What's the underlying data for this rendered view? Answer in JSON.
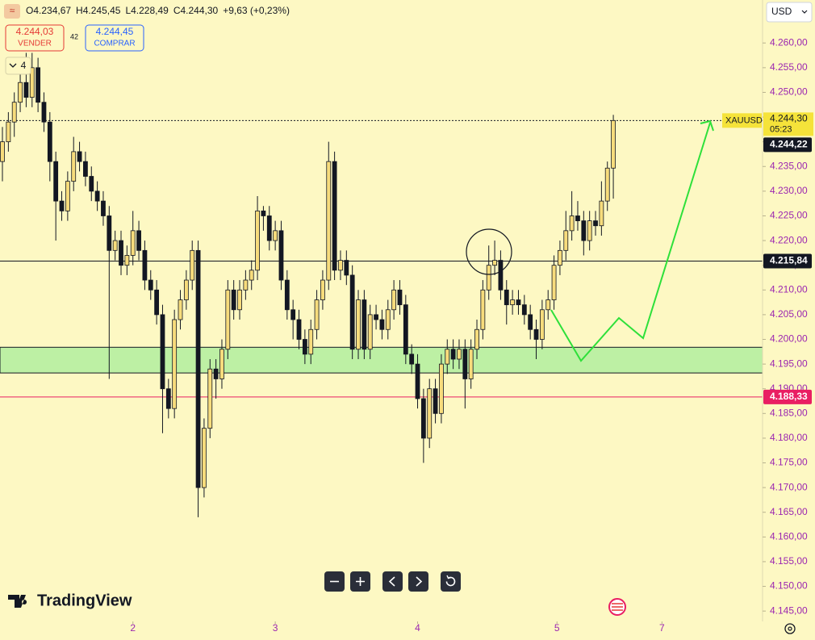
{
  "chart_data": {
    "type": "candlestick",
    "symbol": "XAUUSD",
    "countdown": "05:23",
    "header": {
      "fields": [
        "O4.234,67",
        "H4.245,45",
        "L4.228,49",
        "C4.244,30"
      ],
      "change": "+9,63 (+0,23%)"
    },
    "sell": {
      "price": "4.244,03",
      "label": "VENDER"
    },
    "spread": "42",
    "buy": {
      "price": "4.244,45",
      "label": "COMPRAR"
    },
    "indicator_count": "4",
    "currency": "USD",
    "brand": "TradingView",
    "xlim": [
      -0.41,
      128.16
    ],
    "ylim": [
      4142.9,
      4268.7
    ],
    "xticks": [
      {
        "value": 22,
        "label": "2"
      },
      {
        "value": 46,
        "label": "3"
      },
      {
        "value": 70,
        "label": "4"
      },
      {
        "value": 93.5,
        "label": "5"
      },
      {
        "value": 111.2,
        "label": "7"
      }
    ],
    "yticks": [
      {
        "value": 4145,
        "label": "4.145,00"
      },
      {
        "value": 4150,
        "label": "4.150,00"
      },
      {
        "value": 4155,
        "label": "4.155,00"
      },
      {
        "value": 4160,
        "label": "4.160,00"
      },
      {
        "value": 4165,
        "label": "4.165,00"
      },
      {
        "value": 4170,
        "label": "4.170,00"
      },
      {
        "value": 4175,
        "label": "4.175,00"
      },
      {
        "value": 4180,
        "label": "4.180,00"
      },
      {
        "value": 4185,
        "label": "4.185,00"
      },
      {
        "value": 4190,
        "label": "4.190,00"
      },
      {
        "value": 4195,
        "label": "4.195,00"
      },
      {
        "value": 4200,
        "label": "4.200,00"
      },
      {
        "value": 4205,
        "label": "4.205,00"
      },
      {
        "value": 4210,
        "label": "4.210,00"
      },
      {
        "value": 4215,
        "label": "4.215,00"
      },
      {
        "value": 4220,
        "label": "4.220,00"
      },
      {
        "value": 4225,
        "label": "4.225,00"
      },
      {
        "value": 4230,
        "label": "4.230,00"
      },
      {
        "value": 4235,
        "label": "4.235,00"
      },
      {
        "value": 4240,
        "label": "4.240,00"
      },
      {
        "value": 4245,
        "label": "4.245,00"
      },
      {
        "value": 4250,
        "label": "4.250,00"
      },
      {
        "value": 4255,
        "label": "4.255,00"
      },
      {
        "value": 4260,
        "label": "4.260,00"
      }
    ],
    "up_color": "#f7dc7c",
    "down_color": "#131722",
    "zones": [
      {
        "from": 4193.2,
        "to": 4198.4,
        "color": "#bdf0a4"
      }
    ],
    "price_labels": [
      {
        "value": 4244.3,
        "label": "4.244,30",
        "color": "#f5e33a",
        "text_color": "#131722",
        "line": "dotted"
      },
      {
        "value": 4244.22,
        "label": "4.244,22",
        "color": "#131722",
        "text_color": "#ffffff",
        "line": "none"
      },
      {
        "value": 4215.84,
        "label": "4.215,84",
        "color": "#131722",
        "text_color": "#ffffff",
        "line": "solid"
      },
      {
        "value": 4188.33,
        "label": "4.188,33",
        "color": "#e91e63",
        "text_color": "#ffffff",
        "line": "solid"
      }
    ],
    "candles": [
      [
        4236,
        4243,
        4232,
        4240
      ],
      [
        4240,
        4246,
        4238,
        4244
      ],
      [
        4244,
        4250,
        4241,
        4248
      ],
      [
        4248,
        4256,
        4246,
        4252
      ],
      [
        4252,
        4258,
        4247,
        4249
      ],
      [
        4249,
        4258,
        4247,
        4255
      ],
      [
        4255,
        4257,
        4246,
        4248
      ],
      [
        4248,
        4250,
        4242,
        4244
      ],
      [
        4244,
        4246,
        4232,
        4236
      ],
      [
        4236,
        4238,
        4220,
        4228
      ],
      [
        4228,
        4230,
        4224,
        4226
      ],
      [
        4226,
        4234,
        4224,
        4232
      ],
      [
        4232,
        4241,
        4230,
        4238
      ],
      [
        4238,
        4240,
        4234,
        4236
      ],
      [
        4236,
        4238,
        4231,
        4233
      ],
      [
        4233,
        4235,
        4228,
        4230
      ],
      [
        4230,
        4232,
        4226,
        4228
      ],
      [
        4228,
        4230,
        4223,
        4225
      ],
      [
        4225,
        4227,
        4192,
        4218
      ],
      [
        4218,
        4222,
        4216,
        4220
      ],
      [
        4220,
        4222,
        4213,
        4215
      ],
      [
        4215,
        4219,
        4213,
        4217
      ],
      [
        4217,
        4226,
        4215,
        4222
      ],
      [
        4222,
        4224,
        4216,
        4218
      ],
      [
        4218,
        4220,
        4210,
        4212
      ],
      [
        4212,
        4214,
        4208,
        4210
      ],
      [
        4210,
        4212,
        4203,
        4205
      ],
      [
        4205,
        4207,
        4181,
        4190
      ],
      [
        4190,
        4192,
        4184,
        4186
      ],
      [
        4186,
        4206,
        4184,
        4204
      ],
      [
        4204,
        4210,
        4202,
        4208
      ],
      [
        4208,
        4214,
        4206,
        4212
      ],
      [
        4212,
        4220,
        4210,
        4218
      ],
      [
        4218,
        4220,
        4164,
        4170
      ],
      [
        4170,
        4184,
        4168,
        4182
      ],
      [
        4182,
        4196,
        4180,
        4194
      ],
      [
        4194,
        4196,
        4188,
        4192
      ],
      [
        4192,
        4200,
        4190,
        4198
      ],
      [
        4198,
        4212,
        4196,
        4210
      ],
      [
        4210,
        4212,
        4204,
        4206
      ],
      [
        4206,
        4212,
        4204,
        4210
      ],
      [
        4210,
        4214,
        4208,
        4212
      ],
      [
        4212,
        4216,
        4210,
        4214
      ],
      [
        4214,
        4229,
        4212,
        4226
      ],
      [
        4226,
        4227,
        4222,
        4225
      ],
      [
        4225,
        4227,
        4218,
        4220
      ],
      [
        4220,
        4224,
        4218,
        4222
      ],
      [
        4222,
        4224,
        4210,
        4212
      ],
      [
        4212,
        4214,
        4204,
        4206
      ],
      [
        4206,
        4208,
        4200,
        4204
      ],
      [
        4204,
        4206,
        4198,
        4200
      ],
      [
        4200,
        4202,
        4195,
        4197
      ],
      [
        4197,
        4204,
        4195,
        4202
      ],
      [
        4202,
        4210,
        4200,
        4208
      ],
      [
        4208,
        4214,
        4206,
        4212
      ],
      [
        4212,
        4240,
        4210,
        4236
      ],
      [
        4236,
        4238,
        4212,
        4214
      ],
      [
        4214,
        4218,
        4212,
        4216
      ],
      [
        4216,
        4218,
        4211,
        4213
      ],
      [
        4213,
        4215,
        4196,
        4198
      ],
      [
        4198,
        4210,
        4196,
        4208
      ],
      [
        4208,
        4210,
        4196,
        4198
      ],
      [
        4198,
        4207,
        4196,
        4205
      ],
      [
        4205,
        4207,
        4202,
        4204
      ],
      [
        4204,
        4206,
        4200,
        4202
      ],
      [
        4202,
        4208,
        4200,
        4206
      ],
      [
        4206,
        4212,
        4204,
        4210
      ],
      [
        4210,
        4212,
        4205,
        4207
      ],
      [
        4207,
        4209,
        4195,
        4197
      ],
      [
        4197,
        4199,
        4193,
        4195
      ],
      [
        4195,
        4197,
        4186,
        4188
      ],
      [
        4188,
        4190,
        4175,
        4180
      ],
      [
        4180,
        4192,
        4178,
        4190
      ],
      [
        4190,
        4192,
        4183,
        4185
      ],
      [
        4185,
        4197,
        4183,
        4195
      ],
      [
        4195,
        4200,
        4193,
        4198
      ],
      [
        4198,
        4200,
        4194,
        4196
      ],
      [
        4196,
        4200,
        4194,
        4198
      ],
      [
        4198,
        4200,
        4186,
        4192
      ],
      [
        4192,
        4200,
        4190,
        4198
      ],
      [
        4198,
        4204,
        4196,
        4202
      ],
      [
        4202,
        4212,
        4200,
        4210
      ],
      [
        4210,
        4219,
        4208,
        4215
      ],
      [
        4215,
        4220,
        4213,
        4216
      ],
      [
        4216,
        4218,
        4208,
        4210
      ],
      [
        4210,
        4212,
        4203,
        4207
      ],
      [
        4207,
        4210,
        4205,
        4208
      ],
      [
        4208,
        4210,
        4205,
        4207
      ],
      [
        4207,
        4209,
        4203,
        4205
      ],
      [
        4205,
        4207,
        4200,
        4202
      ],
      [
        4202,
        4204,
        4196,
        4200
      ],
      [
        4200,
        4208,
        4198,
        4206
      ],
      [
        4206,
        4210,
        4204,
        4208
      ],
      [
        4208,
        4217,
        4206,
        4215
      ],
      [
        4215,
        4220,
        4213,
        4218
      ],
      [
        4218,
        4226,
        4216,
        4222
      ],
      [
        4222,
        4230,
        4220,
        4225
      ],
      [
        4225,
        4228,
        4222,
        4224
      ],
      [
        4224,
        4226,
        4217,
        4220
      ],
      [
        4220,
        4226,
        4218,
        4224
      ],
      [
        4224,
        4226,
        4221,
        4223
      ],
      [
        4223,
        4232,
        4221,
        4228
      ],
      [
        4228,
        4236,
        4226,
        4234.67
      ],
      [
        4234.67,
        4245.45,
        4228.49,
        4244.3
      ]
    ]
  }
}
